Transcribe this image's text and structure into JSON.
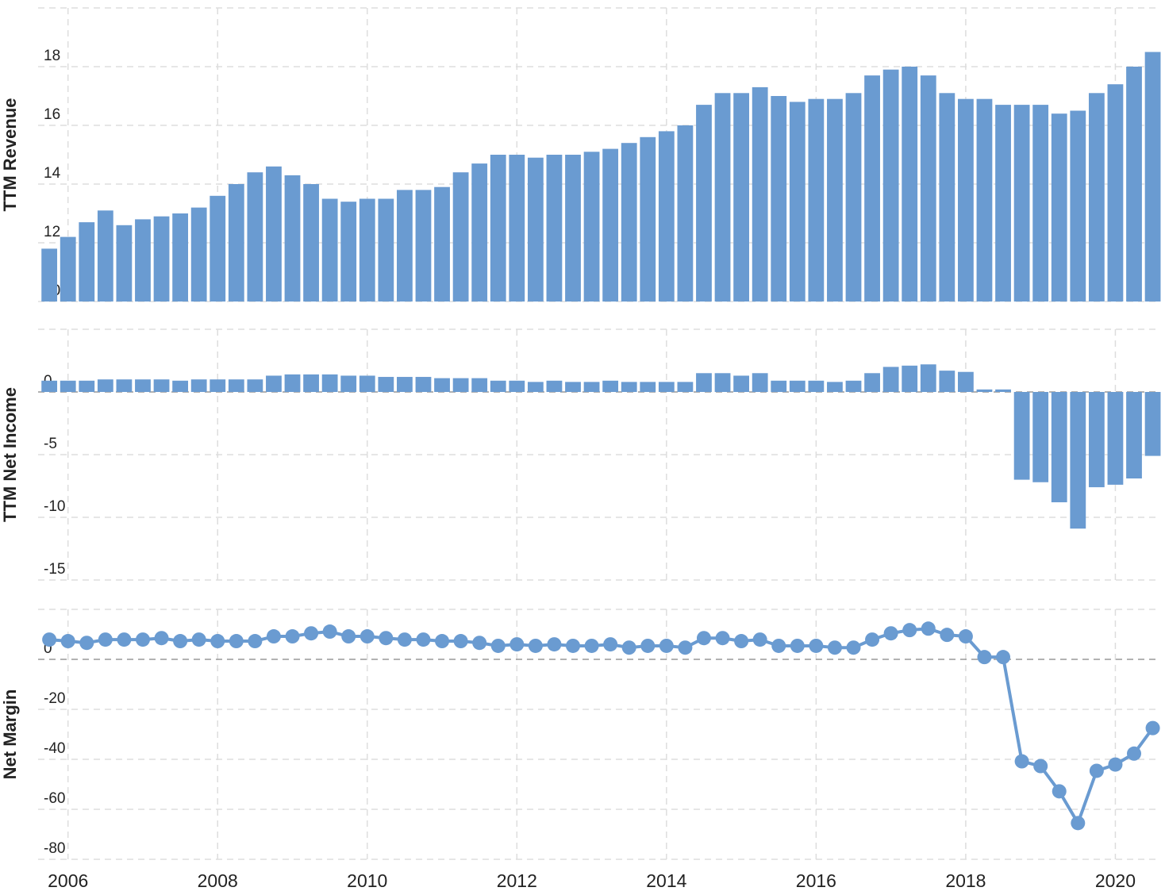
{
  "chart_data": [
    {
      "type": "bar",
      "y_label": "TTM Revenue",
      "color": "#6a9bd1",
      "grid": true,
      "xlim": [
        2005.6,
        2020.6
      ],
      "ylim": [
        10,
        20
      ],
      "yticks": [
        10,
        12,
        14,
        16,
        18
      ],
      "x": [
        2005.75,
        2006,
        2006.25,
        2006.5,
        2006.75,
        2007,
        2007.25,
        2007.5,
        2007.75,
        2008,
        2008.25,
        2008.5,
        2008.75,
        2009,
        2009.25,
        2009.5,
        2009.75,
        2010,
        2010.25,
        2010.5,
        2010.75,
        2011,
        2011.25,
        2011.5,
        2011.75,
        2012,
        2012.25,
        2012.5,
        2012.75,
        2013,
        2013.25,
        2013.5,
        2013.75,
        2014,
        2014.25,
        2014.5,
        2014.75,
        2015,
        2015.25,
        2015.5,
        2015.75,
        2016,
        2016.25,
        2016.5,
        2016.75,
        2017,
        2017.25,
        2017.5,
        2017.75,
        2018,
        2018.25,
        2018.5,
        2018.75,
        2019,
        2019.25,
        2019.5,
        2019.75,
        2020,
        2020.25,
        2020.5
      ],
      "values": [
        11.8,
        12.2,
        12.7,
        13.1,
        12.6,
        12.8,
        12.9,
        13.0,
        13.2,
        13.6,
        14.0,
        14.4,
        14.6,
        14.3,
        14.0,
        13.5,
        13.4,
        13.5,
        13.5,
        13.8,
        13.8,
        13.9,
        14.4,
        14.7,
        15.0,
        15.0,
        14.9,
        15.0,
        15.0,
        15.1,
        15.2,
        15.4,
        15.6,
        15.8,
        16.0,
        16.7,
        17.1,
        17.1,
        17.3,
        17.0,
        16.8,
        16.9,
        16.9,
        17.1,
        17.7,
        17.9,
        18.0,
        17.7,
        17.1,
        16.9,
        16.9,
        16.7,
        16.7,
        16.7,
        16.4,
        16.5,
        17.1,
        17.4,
        18.0,
        18.5
      ]
    },
    {
      "type": "bar",
      "y_label": "TTM Net Income",
      "color": "#6a9bd1",
      "grid": true,
      "xlim": [
        2005.6,
        2020.6
      ],
      "ylim": [
        -15,
        5
      ],
      "yticks": [
        -15,
        -10,
        -5,
        0
      ],
      "x": [
        2005.75,
        2006,
        2006.25,
        2006.5,
        2006.75,
        2007,
        2007.25,
        2007.5,
        2007.75,
        2008,
        2008.25,
        2008.5,
        2008.75,
        2009,
        2009.25,
        2009.5,
        2009.75,
        2010,
        2010.25,
        2010.5,
        2010.75,
        2011,
        2011.25,
        2011.5,
        2011.75,
        2012,
        2012.25,
        2012.5,
        2012.75,
        2013,
        2013.25,
        2013.5,
        2013.75,
        2014,
        2014.25,
        2014.5,
        2014.75,
        2015,
        2015.25,
        2015.5,
        2015.75,
        2016,
        2016.25,
        2016.5,
        2016.75,
        2017,
        2017.25,
        2017.5,
        2017.75,
        2018,
        2018.25,
        2018.5,
        2018.75,
        2019,
        2019.25,
        2019.5,
        2019.75,
        2020,
        2020.25,
        2020.5
      ],
      "values": [
        0.9,
        0.9,
        0.9,
        1.0,
        1.0,
        1.0,
        1.0,
        0.9,
        1.0,
        1.0,
        1.0,
        1.0,
        1.3,
        1.4,
        1.4,
        1.4,
        1.3,
        1.3,
        1.2,
        1.2,
        1.2,
        1.1,
        1.1,
        1.1,
        0.9,
        0.9,
        0.8,
        0.9,
        0.8,
        0.8,
        0.9,
        0.8,
        0.8,
        0.8,
        0.8,
        1.5,
        1.5,
        1.3,
        1.5,
        0.9,
        0.9,
        0.9,
        0.8,
        0.9,
        1.5,
        2.0,
        2.1,
        2.2,
        1.7,
        1.6,
        0.2,
        0.2,
        -7.0,
        -7.2,
        -8.8,
        -10.9,
        -7.6,
        -7.4,
        -6.9,
        -5.1
      ]
    },
    {
      "type": "line",
      "y_label": "Net Margin",
      "color": "#6a9bd1",
      "grid": true,
      "xlim": [
        2005.6,
        2020.6
      ],
      "ylim": [
        -80,
        20
      ],
      "yticks": [
        -80,
        -60,
        -40,
        -20,
        0
      ],
      "xticks": [
        2006,
        2008,
        2010,
        2012,
        2014,
        2016,
        2018,
        2020
      ],
      "x": [
        2005.75,
        2006,
        2006.25,
        2006.5,
        2006.75,
        2007,
        2007.25,
        2007.5,
        2007.75,
        2008,
        2008.25,
        2008.5,
        2008.75,
        2009,
        2009.25,
        2009.5,
        2009.75,
        2010,
        2010.25,
        2010.5,
        2010.75,
        2011,
        2011.25,
        2011.5,
        2011.75,
        2012,
        2012.25,
        2012.5,
        2012.75,
        2013,
        2013.25,
        2013.5,
        2013.75,
        2014,
        2014.25,
        2014.5,
        2014.75,
        2015,
        2015.25,
        2015.5,
        2015.75,
        2016,
        2016.25,
        2016.5,
        2016.75,
        2017,
        2017.25,
        2017.5,
        2017.75,
        2018,
        2018.25,
        2018.5,
        2018.75,
        2019,
        2019.25,
        2019.5,
        2019.75,
        2020,
        2020.25,
        2020.5
      ],
      "values": [
        7.9,
        7.3,
        6.6,
        7.9,
        7.9,
        7.9,
        8.5,
        7.3,
        7.9,
        7.3,
        7.3,
        7.3,
        9.2,
        9.2,
        10.4,
        11.1,
        9.2,
        9.2,
        8.5,
        7.9,
        7.9,
        7.3,
        7.3,
        6.6,
        5.4,
        6.0,
        5.4,
        6.0,
        5.4,
        5.4,
        6.0,
        4.7,
        5.4,
        5.4,
        4.7,
        8.5,
        8.5,
        7.3,
        7.9,
        5.4,
        5.4,
        5.4,
        4.7,
        4.7,
        7.9,
        10.4,
        11.7,
        12.3,
        9.8,
        9.2,
        0.9,
        0.9,
        -40.8,
        -42.7,
        -52.8,
        -65.5,
        -44.6,
        -42.1,
        -37.7,
        -27.5
      ]
    }
  ]
}
